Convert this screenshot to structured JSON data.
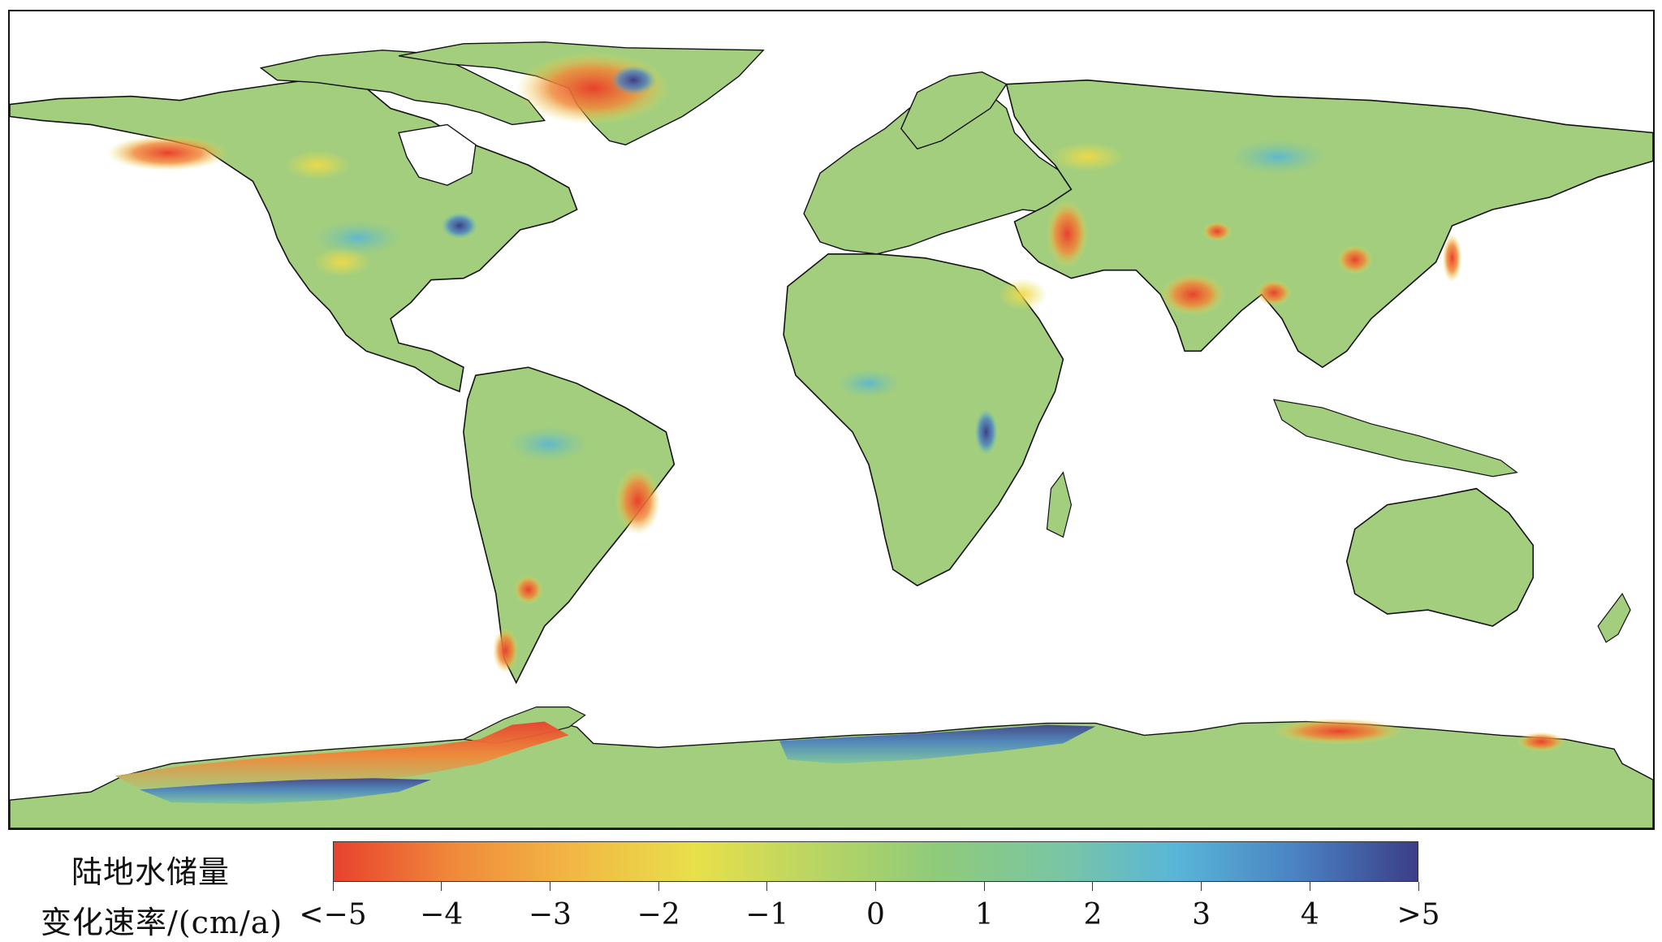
{
  "legend": {
    "title_line1": "陆地水储量",
    "title_line2": "变化速率/(cm/a)",
    "colors": [
      "#e8412d",
      "#f08a3a",
      "#f2b845",
      "#e8e04a",
      "#b9d563",
      "#8fcb7a",
      "#7bc6a2",
      "#58b6d8",
      "#4a82c2",
      "#3b3e88"
    ],
    "ticks": [
      "<−5",
      "−4",
      "−3",
      "−2",
      "−1",
      "0",
      "1",
      "2",
      "3",
      "4",
      ">5"
    ]
  },
  "map_colors": {
    "land": "#a3ce7e",
    "land_light": "#b6d66f",
    "border": "#111111",
    "ocean": "#ffffff"
  }
}
